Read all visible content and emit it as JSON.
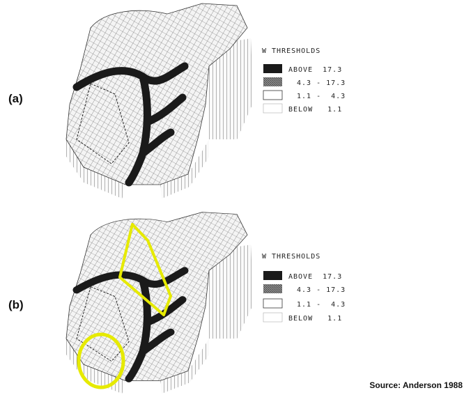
{
  "panels": [
    {
      "label": "(a)",
      "legend": {
        "title": "W THRESHOLDS",
        "items": [
          "ABOVE  17.3",
          "4.3 - 17.3",
          "1.1 -  4.3",
          "BELOW   1.1"
        ]
      }
    },
    {
      "label": "(b)",
      "legend": {
        "title": "W THRESHOLDS",
        "items": [
          "ABOVE  17.3",
          "4.3 - 17.3",
          "1.1 -  4.3",
          "BELOW   1.1"
        ]
      }
    }
  ],
  "source": "Source: Anderson 1988"
}
